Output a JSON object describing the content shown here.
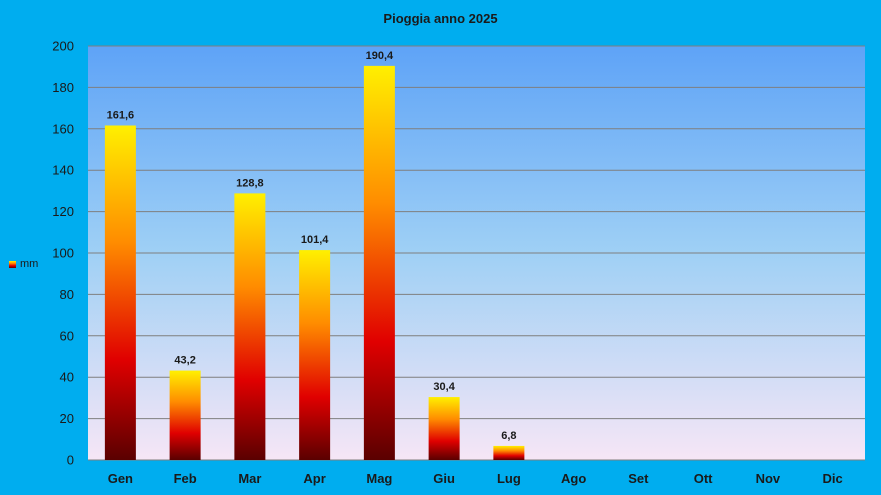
{
  "chart_data": {
    "type": "bar",
    "title": "Pioggia anno 2025",
    "categories": [
      "Gen",
      "Feb",
      "Mar",
      "Apr",
      "Mag",
      "Giu",
      "Lug",
      "Ago",
      "Set",
      "Ott",
      "Nov",
      "Dic"
    ],
    "series": [
      {
        "name": "mm",
        "values": [
          161.6,
          43.2,
          128.8,
          101.4,
          190.4,
          30.4,
          6.8,
          null,
          null,
          null,
          null,
          null
        ],
        "labels": [
          "161,6",
          "43,2",
          "128,8",
          "101,4",
          "190,4",
          "30,4",
          "6,8",
          "",
          "",
          "",
          "",
          ""
        ]
      }
    ],
    "ylim": [
      0,
      200
    ],
    "yticks": [
      0,
      20,
      40,
      60,
      80,
      100,
      120,
      140,
      160,
      180,
      200
    ],
    "grid": true,
    "legend_position": "left"
  },
  "colors": {
    "background": "#00ADEF",
    "plot_top": "#5EA3F7",
    "plot_mid": "#9FD0F5",
    "plot_bottom": "#F6E6F6",
    "bar_top": "#FFF000",
    "bar_upper": "#FF8C00",
    "bar_lower": "#E00000",
    "bar_bottom": "#5A0000",
    "gridline": "#7F7F7F"
  }
}
